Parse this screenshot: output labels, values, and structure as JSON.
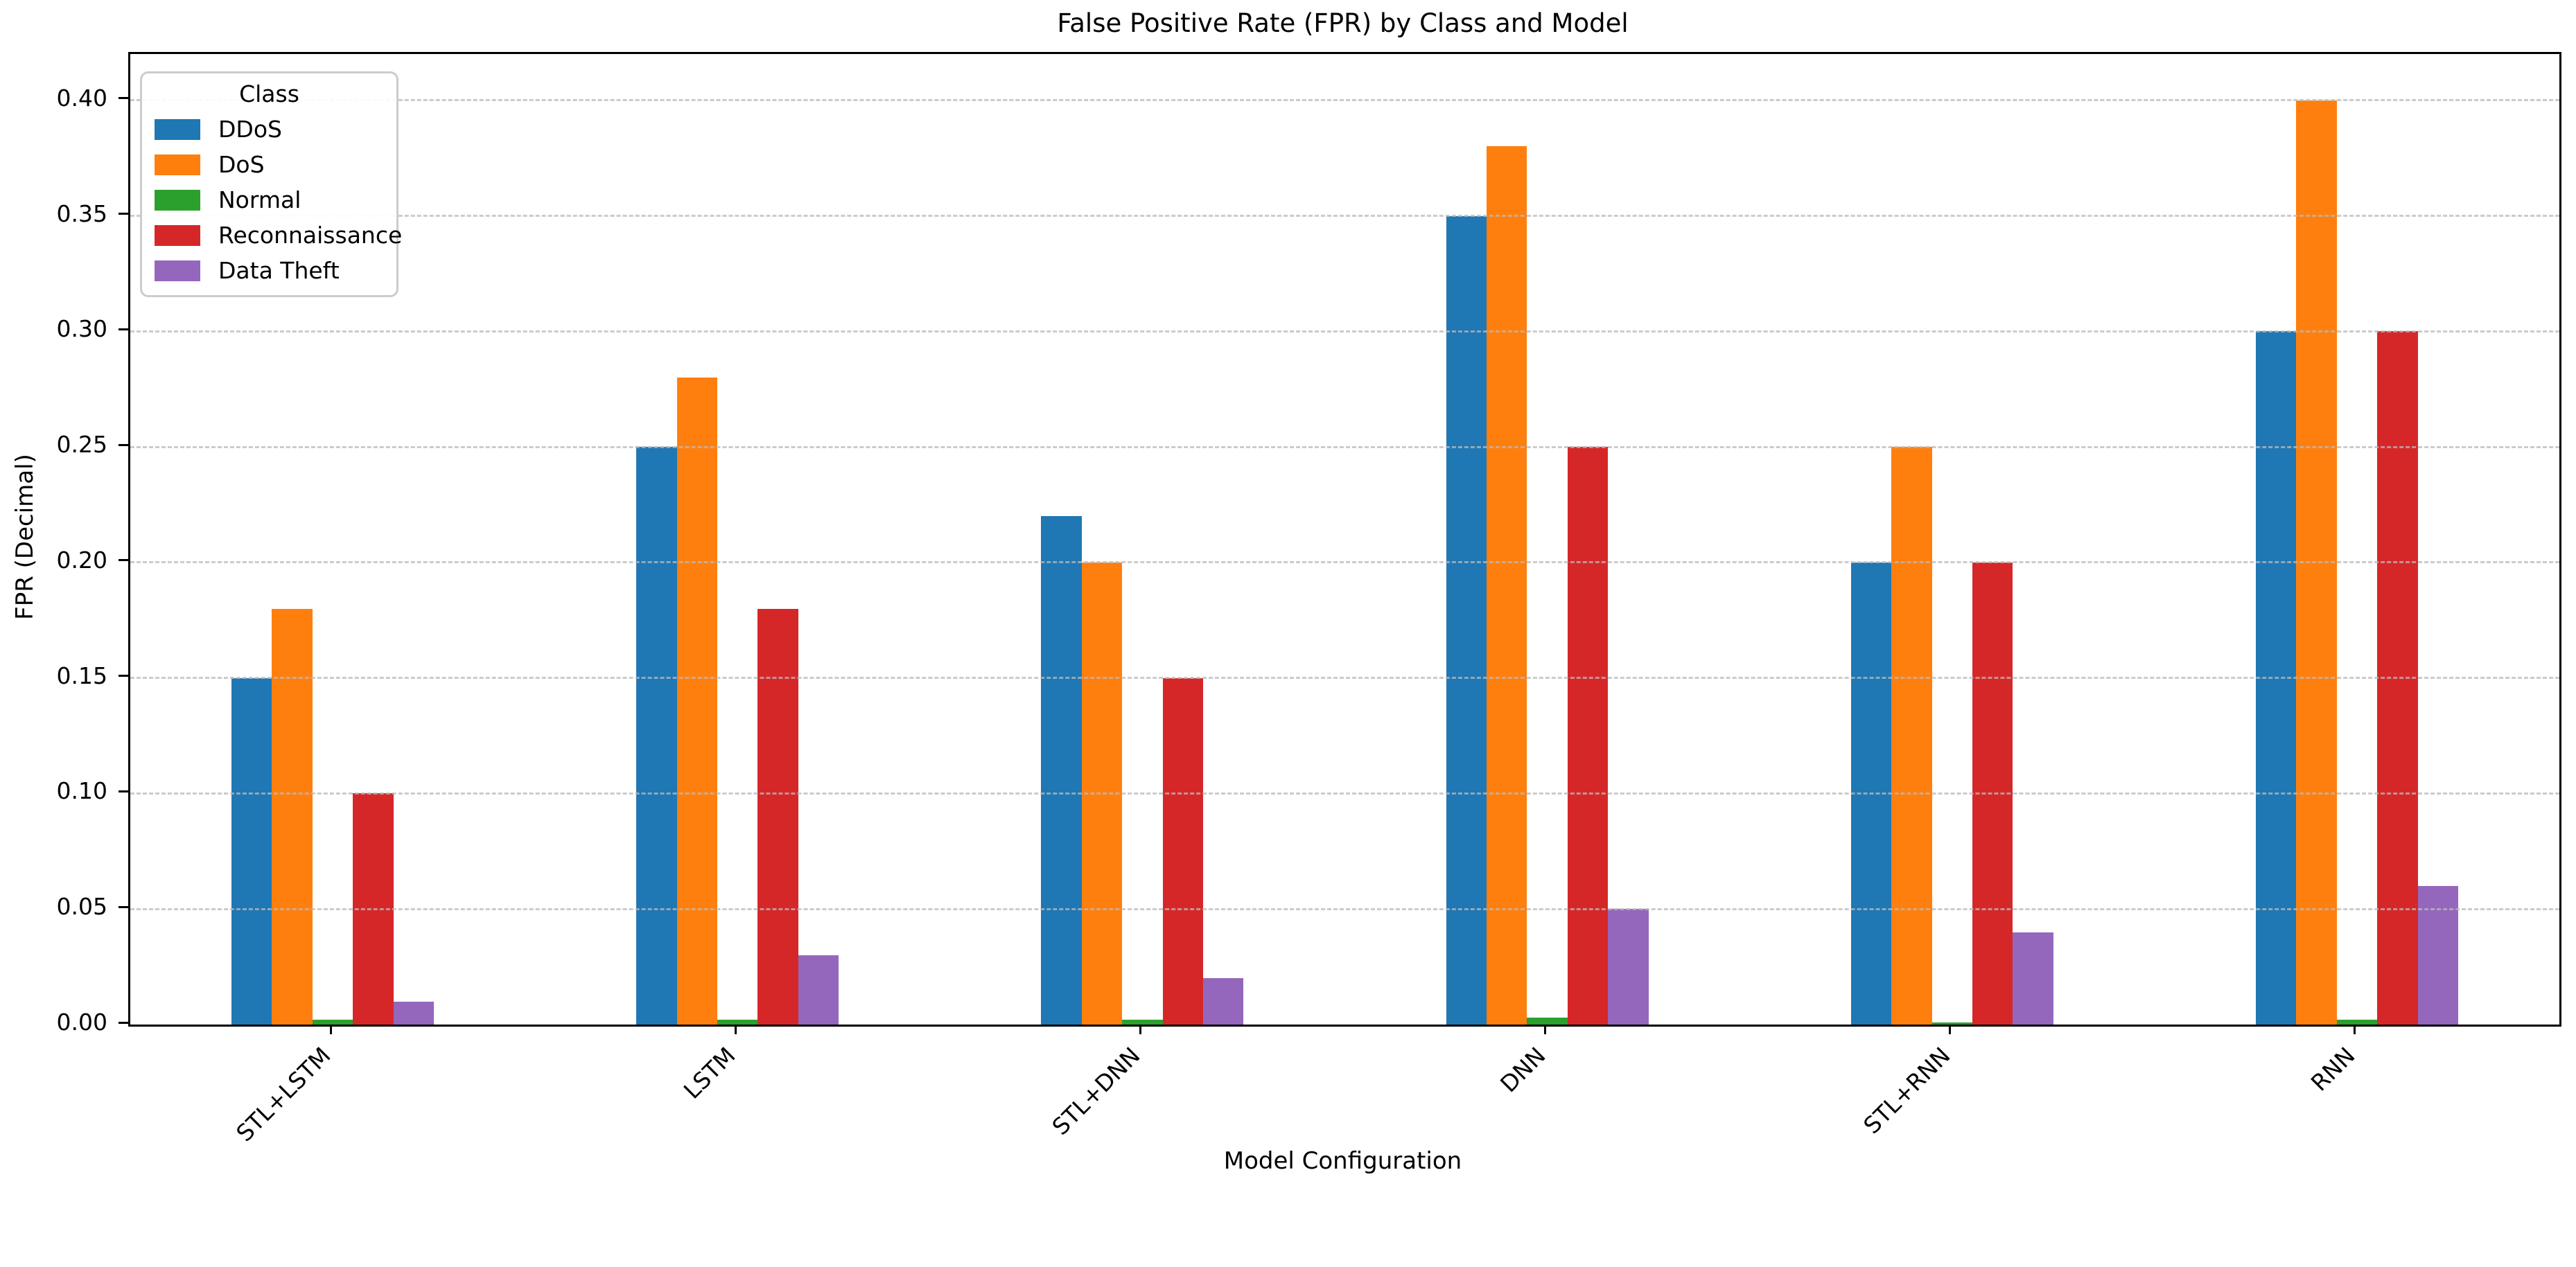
{
  "chart_data": {
    "type": "bar",
    "title": "False Positive Rate (FPR) by Class and Model",
    "xlabel": "Model Configuration",
    "ylabel": "FPR (Decimal)",
    "categories": [
      "STL+LSTM",
      "LSTM",
      "STL+DNN",
      "DNN",
      "STL+RNN",
      "RNN"
    ],
    "series": [
      {
        "name": "DDoS",
        "color": "#1f77b4",
        "values": [
          0.15,
          0.25,
          0.22,
          0.35,
          0.2,
          0.3
        ]
      },
      {
        "name": "DoS",
        "color": "#ff7f0e",
        "values": [
          0.18,
          0.28,
          0.2,
          0.38,
          0.25,
          0.4
        ]
      },
      {
        "name": "Normal",
        "color": "#2ca02c",
        "values": [
          0.002,
          0.002,
          0.002,
          0.003,
          0.001,
          0.002
        ]
      },
      {
        "name": "Reconnaissance",
        "color": "#d62728",
        "values": [
          0.1,
          0.18,
          0.15,
          0.25,
          0.2,
          0.3
        ]
      },
      {
        "name": "Data Theft",
        "color": "#9467bd",
        "values": [
          0.01,
          0.03,
          0.02,
          0.05,
          0.04,
          0.06
        ]
      }
    ],
    "legend": {
      "title": "Class",
      "position": "upper left",
      "entries": [
        "DDoS",
        "DoS",
        "Normal",
        "Reconnaissance",
        "Data Theft"
      ]
    },
    "ylim": [
      0,
      0.42
    ],
    "yticks": [
      "0.00",
      "0.05",
      "0.10",
      "0.15",
      "0.20",
      "0.25",
      "0.30",
      "0.35",
      "0.40"
    ],
    "grid": "horizontal dashed, drawn above bars",
    "xtick_rotation": 45,
    "axis_color": "#000000",
    "grid_color": "#b9b9b9"
  }
}
